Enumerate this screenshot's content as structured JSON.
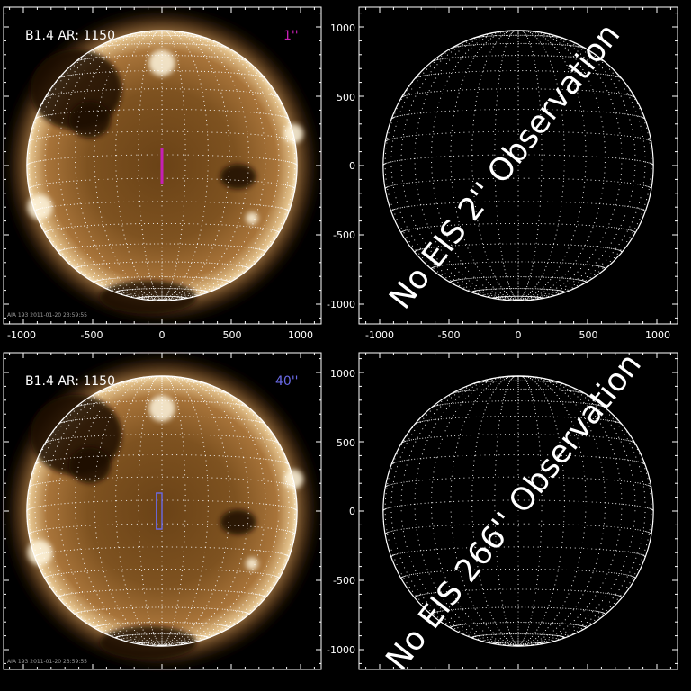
{
  "colors": {
    "background": "#000000",
    "axes": "#ffffff",
    "slit_1arcsec": "#c61fb4",
    "slit_40arcsec": "#6a6ae6",
    "sun_core": "#8a5a24",
    "sun_limb": "#f2dcaa"
  },
  "axis": {
    "range": [
      -1150,
      1150
    ],
    "ticks": [
      -1000,
      -500,
      0,
      500,
      1000
    ]
  },
  "panels": [
    {
      "id": "top-left",
      "kind": "image",
      "label": "B1.4 AR: 1150",
      "slit_label": "1''",
      "slit": {
        "x": 0,
        "y_range": [
          -130,
          130
        ],
        "width_arcsec": 10,
        "color_key": "slit_1arcsec",
        "filled": true
      },
      "timestamp": "AIA 193 2011-01-20 23:59:55",
      "x_tick_labels": [
        "-1000",
        "-500",
        "0",
        "500",
        "1000"
      ],
      "y_tick_labels": [
        "1000",
        "500",
        "0",
        "-500",
        "-1000"
      ]
    },
    {
      "id": "top-right",
      "kind": "grid",
      "overlay_text": "No EIS 2'' Observation",
      "x_tick_labels": [
        "-1000",
        "-500",
        "0",
        "500",
        "1000"
      ],
      "y_tick_labels": [
        "1000",
        "500",
        "0",
        "-500",
        "-1000"
      ]
    },
    {
      "id": "bottom-left",
      "kind": "image",
      "label": "B1.4 AR: 1150",
      "slit_label": "40''",
      "slit": {
        "x": -20,
        "y_range": [
          -130,
          130
        ],
        "width_arcsec": 40,
        "color_key": "slit_40arcsec",
        "filled": false
      },
      "timestamp": "AIA 193 2011-01-20 23:59:55",
      "x_tick_labels": [],
      "y_tick_labels": [
        "1000",
        "500",
        "0",
        "-500",
        "-1000"
      ]
    },
    {
      "id": "bottom-right",
      "kind": "grid",
      "overlay_text": "No EIS 266'' Observation",
      "x_tick_labels": [],
      "y_tick_labels": [
        "1000",
        "500",
        "0",
        "-500",
        "-1000"
      ]
    }
  ]
}
